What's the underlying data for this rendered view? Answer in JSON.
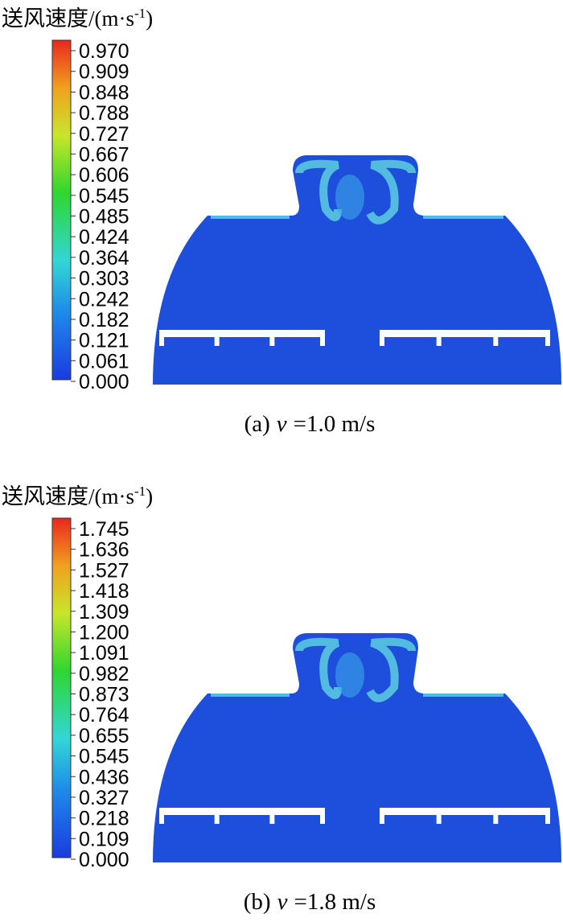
{
  "panels": [
    {
      "legend_title": {
        "main": "送风速度/(m·s",
        "sup": "-1",
        "end": ")"
      },
      "ticks": [
        "0.970",
        "0.909",
        "0.848",
        "0.788",
        "0.727",
        "0.667",
        "0.606",
        "0.545",
        "0.485",
        "0.424",
        "0.364",
        "0.303",
        "0.242",
        "0.182",
        "0.121",
        "0.061",
        "0.000"
      ],
      "caption": {
        "label": "(a)",
        "var": "v",
        "value": "=1.0 m/s"
      }
    },
    {
      "legend_title": {
        "main": "送风速度/(m·s",
        "sup": "-1",
        "end": ")"
      },
      "ticks": [
        "1.745",
        "1.636",
        "1.527",
        "1.418",
        "1.309",
        "1.200",
        "1.091",
        "0.982",
        "0.873",
        "0.764",
        "0.655",
        "0.545",
        "0.436",
        "0.327",
        "0.218",
        "0.109",
        "0.000"
      ],
      "caption": {
        "label": "(b)",
        "var": "v",
        "value": "=1.8 m/s"
      }
    }
  ]
}
